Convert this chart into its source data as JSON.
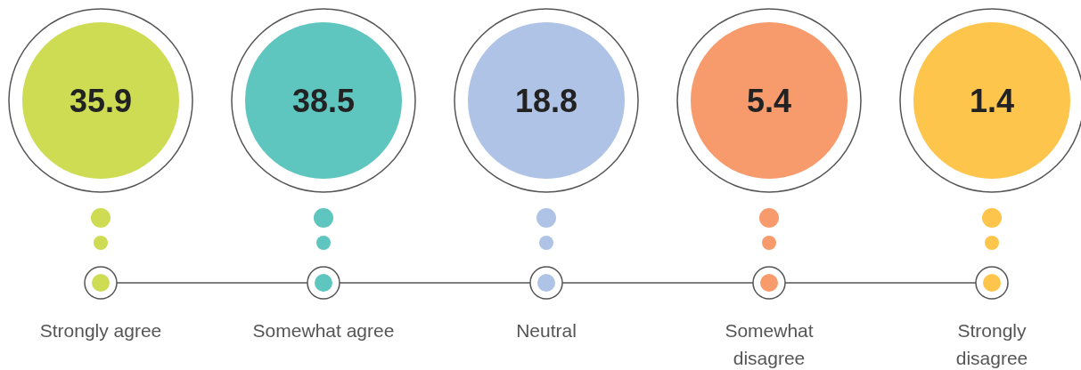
{
  "chart_data": {
    "type": "other",
    "categories": [
      "Strongly agree",
      "Somewhat agree",
      "Neutral",
      "Somewhat disagree",
      "Strongly disagree"
    ],
    "values": [
      35.9,
      38.5,
      18.8,
      5.4,
      1.4
    ],
    "colors": [
      "#cddc52",
      "#5fc5bf",
      "#aec3e6",
      "#f79a6c",
      "#fdc54c"
    ],
    "data_labels": true
  }
}
